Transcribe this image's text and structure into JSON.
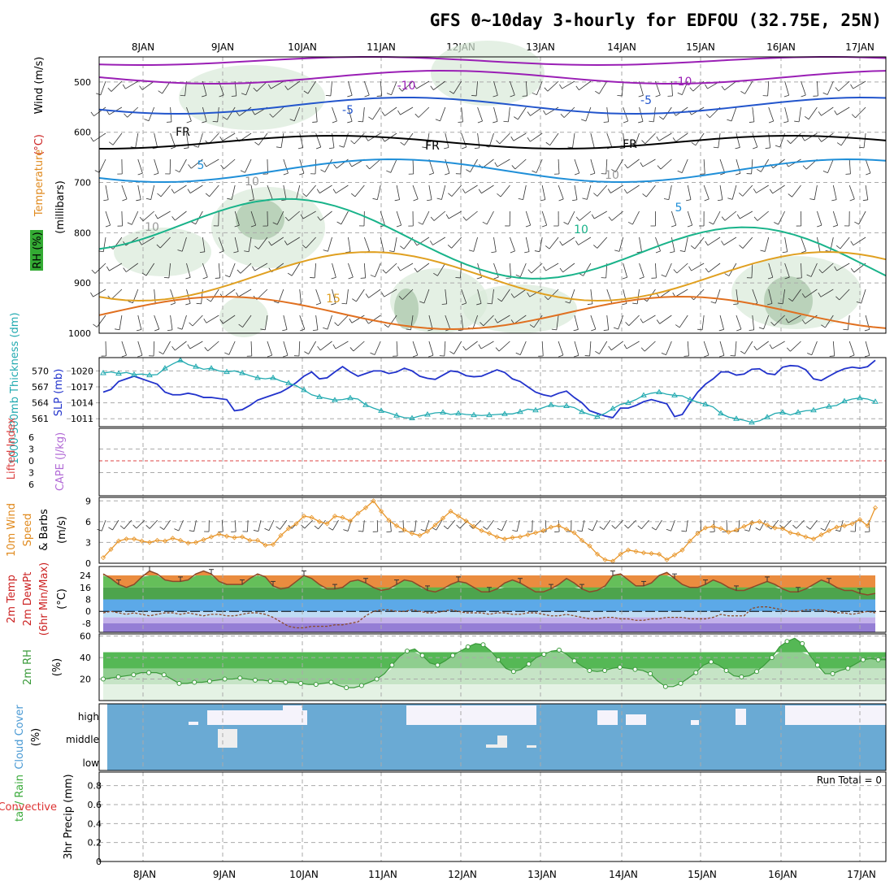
{
  "title": "GFS 0~10day 3-hourly for EDFOU (32.75E, 25N)",
  "dates": [
    "8JAN",
    "9JAN",
    "10JAN",
    "11JAN",
    "12JAN",
    "13JAN",
    "14JAN",
    "15JAN",
    "16JAN",
    "17JAN"
  ],
  "chart_data": [
    {
      "type": "heatmap",
      "panel": "upper-air",
      "ylabel": "(millibars)",
      "ylabel_parts": [
        {
          "text": "Wind (m/s)",
          "color": "#000000"
        },
        {
          "text": "(°C)",
          "color": "#cc2222"
        },
        {
          "text": "Temperature",
          "color": "#e08a1e"
        },
        {
          "text": "RH (%)",
          "color": "#000000"
        }
      ],
      "y_ticks": [
        500,
        600,
        700,
        800,
        900,
        1000
      ],
      "ylim": [
        1000,
        450
      ],
      "isotherm_labels": [
        {
          "text": "-10",
          "color": "#9a1fb5"
        },
        {
          "text": "-10",
          "color": "#9a1fb5"
        },
        {
          "text": "-5",
          "color": "#2255cc"
        },
        {
          "text": "-5",
          "color": "#2255cc"
        },
        {
          "text": "FR",
          "color": "#000000"
        },
        {
          "text": "FR",
          "color": "#000000"
        },
        {
          "text": "FR",
          "color": "#000000"
        },
        {
          "text": "5",
          "color": "#1f8fd8"
        },
        {
          "text": "5",
          "color": "#1f8fd8"
        },
        {
          "text": "10",
          "color": "#19b38a"
        },
        {
          "text": "15",
          "color": "#e0a020"
        },
        {
          "text": "10",
          "color": "#999999"
        },
        {
          "text": "10",
          "color": "#999999"
        },
        {
          "text": "10",
          "color": "#999999"
        }
      ]
    },
    {
      "type": "line",
      "panel": "slp-thickness",
      "ylabel_left": "1000-500mb Thickness (dm)",
      "ylabel_right": "SLP (mb)",
      "left_ticks": [
        570,
        567,
        564,
        561
      ],
      "right_ticks": [
        1020,
        1017,
        1014,
        1011
      ],
      "series": [
        {
          "name": "SLP",
          "color": "#2233cc",
          "values": [
            1016,
            1016.5,
            1018,
            1018.5,
            1019,
            1018.5,
            1018,
            1017.5,
            1016,
            1015.5,
            1015.5,
            1015.8,
            1015.5,
            1015,
            1015,
            1014.8,
            1014.6,
            1012.5,
            1012.7,
            1013.5,
            1014.5,
            1015,
            1015.5,
            1016,
            1016.8,
            1017.8,
            1019,
            1019.8,
            1018.5,
            1018.7,
            1019.8,
            1020.8,
            1019.8,
            1019,
            1019.5,
            1020,
            1020,
            1019.5,
            1019.8,
            1020.5,
            1020,
            1019,
            1018.6,
            1018.4,
            1019.2,
            1020,
            1019.8,
            1019.1,
            1018.9,
            1019,
            1019.6,
            1020.2,
            1019.7,
            1018.5,
            1018,
            1017,
            1016,
            1015.5,
            1015.2,
            1015.8,
            1016.2,
            1015,
            1014,
            1012.5,
            1012,
            1011.5,
            1011.2,
            1013,
            1013,
            1013.5,
            1014.2,
            1014.6,
            1014.2,
            1013.8,
            1011.4,
            1011.8,
            1014,
            1016,
            1017.5,
            1018.5,
            1019.8,
            1019.8,
            1019.2,
            1019.4,
            1020.3,
            1020.4,
            1019.5,
            1019.3,
            1020.7,
            1021,
            1020.9,
            1020.2,
            1018.5,
            1018.2,
            1019,
            1019.8,
            1020.4,
            1020.7,
            1020.5,
            1020.8,
            1022
          ]
        },
        {
          "name": "Thickness",
          "color": "#22aab0",
          "values": [
            569.6,
            569.8,
            569.5,
            569.7,
            569.3,
            569.4,
            569.2,
            569.3,
            570.5,
            571.3,
            572,
            571.2,
            570.8,
            570.3,
            570.5,
            570,
            569.8,
            570,
            569.6,
            569.1,
            568.7,
            568.5,
            568.7,
            568.1,
            567.7,
            567.2,
            566.4,
            565.5,
            565.1,
            564.8,
            564.5,
            564.6,
            564.9,
            564.7,
            563.6,
            563,
            562.5,
            562.1,
            561.6,
            561.2,
            561.1,
            561.5,
            561.8,
            562.1,
            562.2,
            561.8,
            562,
            561.8,
            561.7,
            561.6,
            561.7,
            561.8,
            561.9,
            561.9,
            562.3,
            562.8,
            562.6,
            563.1,
            563.6,
            563.3,
            563.4,
            563.1,
            562.3,
            561.8,
            561.4,
            562,
            562.9,
            563.7,
            564,
            564.6,
            565.4,
            565.8,
            566,
            565.6,
            565.4,
            565.3,
            564.6,
            564.1,
            563.7,
            563.2,
            562,
            561.3,
            561,
            560.7,
            560.3,
            560.6,
            561.3,
            562,
            562.2,
            561.7,
            562.2,
            562.5,
            562.6,
            563,
            563.3,
            563.5,
            564.3,
            564.7,
            564.9,
            564.7,
            564.2
          ]
        }
      ]
    },
    {
      "type": "line",
      "panel": "lifted-index-cape",
      "ylabel_left": "Lifted Index",
      "ylabel_right": "CAPE (J/kg)",
      "y_ticks": [
        6,
        3,
        0,
        3,
        6
      ]
    },
    {
      "type": "line",
      "panel": "10m-wind",
      "ylabel": "10m Wind Speed (m/s) & Barbs",
      "ylabel_parts": [
        {
          "text": "10m Wind",
          "color": "#e08a1e"
        },
        {
          "text": "Speed",
          "color": "#e08a1e"
        },
        {
          "text": "& Barbs",
          "color": "#000000"
        },
        {
          "text": "(m/s)",
          "color": "#000000"
        }
      ],
      "y_ticks": [
        9,
        6,
        3,
        0
      ],
      "ylim": [
        0,
        9
      ],
      "series": [
        {
          "name": "10m Wind Speed",
          "color": "#e8962a",
          "values": [
            0.8,
            2,
            3.2,
            3.5,
            3.5,
            3.2,
            3,
            3.3,
            3.2,
            3.6,
            3.3,
            2.9,
            3,
            3.4,
            3.8,
            4.2,
            3.9,
            3.7,
            3.8,
            3.3,
            3.3,
            2.6,
            2.7,
            4,
            5,
            5.7,
            6.8,
            6.6,
            6,
            5.7,
            6.8,
            6.6,
            6.1,
            7.2,
            8,
            9,
            7.5,
            6.2,
            5.4,
            4.8,
            4.3,
            4,
            4.6,
            5.5,
            6.5,
            7.5,
            6.8,
            6.1,
            5.3,
            4.7,
            4.3,
            3.8,
            3.5,
            3.7,
            3.8,
            4.1,
            4.4,
            4.7,
            5.2,
            5.4,
            4.9,
            4.4,
            3.3,
            2.5,
            1.3,
            0.5,
            0.3,
            1.3,
            1.9,
            1.7,
            1.5,
            1.4,
            1.3,
            0.5,
            1.2,
            1.9,
            3.2,
            4.3,
            5.1,
            5.3,
            5,
            4.5,
            4.8,
            5.3,
            5.8,
            6,
            5.5,
            5.1,
            5,
            4.4,
            4.2,
            3.8,
            3.5,
            4.1,
            4.7,
            5.2,
            5.4,
            5.7,
            6.3,
            5.4,
            8
          ]
        }
      ]
    },
    {
      "type": "area",
      "panel": "2m-temperature",
      "ylabel": "2m Temp 2m DewPt (6hr Min/Max) (°C)",
      "ylabel_parts": [
        {
          "text": "2m Temp",
          "color": "#cc2222"
        },
        {
          "text": "2m DewPt",
          "color": "#cc2222"
        },
        {
          "text": "(6hr Min/Max)",
          "color": "#cc2222"
        },
        {
          "text": "(°C)",
          "color": "#000000"
        }
      ],
      "y_ticks": [
        24,
        16,
        8,
        0,
        -8
      ],
      "ylim": [
        -14,
        30
      ],
      "series": [
        {
          "name": "2m Temp",
          "color": "#8b4a2a",
          "values": [
            25,
            22,
            18,
            16,
            18,
            23,
            27,
            25,
            21,
            20,
            20,
            21,
            25,
            27,
            25,
            20,
            18,
            18,
            18,
            22,
            25,
            23,
            17,
            15,
            16,
            20,
            24,
            22,
            18,
            15,
            15,
            16,
            20,
            21,
            19,
            16,
            14,
            15,
            18,
            21,
            20,
            17,
            14,
            13,
            15,
            18,
            20,
            19,
            16,
            13,
            13,
            15,
            19,
            21,
            19,
            16,
            13,
            13,
            15,
            18,
            22,
            19,
            15,
            13,
            14,
            17,
            24,
            25,
            21,
            17,
            17,
            19,
            24,
            26,
            22,
            18,
            16,
            16,
            18,
            21,
            19,
            16,
            14,
            14,
            16,
            18,
            20,
            18,
            15,
            13,
            13,
            15,
            18,
            21,
            19,
            16,
            14,
            14,
            12,
            11,
            12
          ]
        },
        {
          "name": "2m DewPt",
          "color": "#8b4a2a",
          "values": [
            -1,
            0,
            -1,
            -2,
            -1,
            -2,
            -3,
            -2,
            -1,
            -1,
            -2,
            -1,
            -2,
            -3,
            -2,
            -2,
            -3,
            -3,
            -2,
            -1,
            -1,
            -2,
            -4,
            -7,
            -10,
            -11,
            -11,
            -10,
            -10,
            -10,
            -9,
            -9,
            -8,
            -7,
            -3,
            0,
            1,
            1,
            0,
            0,
            1,
            0,
            -1,
            -1,
            0,
            1,
            0,
            -1,
            -1,
            -1,
            -2,
            -1,
            -1,
            -2,
            -2,
            -1,
            -1,
            -2,
            -3,
            -3,
            -2,
            -3,
            -4,
            -5,
            -5,
            -4,
            -4,
            -5,
            -5,
            -6,
            -6,
            -5,
            -5,
            -4,
            -4,
            -4,
            -5,
            -5,
            -5,
            -4,
            -2,
            -3,
            -3,
            -3,
            2,
            3,
            3,
            2,
            1,
            0,
            0,
            1,
            1,
            1,
            0,
            -1,
            -1,
            -2,
            -1,
            0,
            -1
          ]
        }
      ]
    },
    {
      "type": "area",
      "panel": "2m-rh",
      "ylabel": "2m RH (%)",
      "y_ticks": [
        60,
        40,
        20
      ],
      "ylim": [
        0,
        60
      ],
      "series": [
        {
          "name": "2m RH",
          "color": "#3a9a3a",
          "values": [
            20,
            21,
            22,
            23,
            24,
            26,
            26,
            26,
            24,
            20,
            16,
            16,
            17,
            17,
            18,
            19,
            20,
            20,
            21,
            20,
            19,
            19,
            18,
            18,
            17,
            17,
            16,
            15,
            15,
            16,
            17,
            14,
            12,
            12,
            14,
            17,
            20,
            25,
            33,
            41,
            46,
            48,
            42,
            35,
            33,
            37,
            42,
            46,
            50,
            53,
            52,
            46,
            38,
            30,
            27,
            29,
            34,
            40,
            43,
            46,
            47,
            43,
            37,
            32,
            28,
            27,
            28,
            30,
            31,
            30,
            29,
            28,
            25,
            18,
            13,
            13,
            16,
            21,
            26,
            33,
            36,
            33,
            28,
            23,
            22,
            23,
            27,
            33,
            40,
            50,
            55,
            58,
            53,
            42,
            33,
            25,
            25,
            28,
            30,
            34,
            38,
            39,
            38,
            38
          ]
        }
      ]
    },
    {
      "type": "heatmap",
      "panel": "cloud-cover",
      "ylabel": "Cloud Cover (%)",
      "y_labels": [
        "high",
        "middle",
        "low"
      ]
    },
    {
      "type": "bar",
      "panel": "precipitation",
      "ylabel": "3hr Precip (mm)",
      "ylabel_parts": [
        {
          "text": "tal / Rain",
          "color": "#3aaa3a"
        },
        {
          "text": "Convective",
          "color": "#dd3333"
        },
        {
          "text": "3hr Precip (mm)",
          "color": "#000000"
        }
      ],
      "y_ticks": [
        0.8,
        0.6,
        0.4,
        0.2,
        0
      ],
      "ylim": [
        0,
        0.9
      ],
      "annotation": "Run Total = 0"
    }
  ]
}
